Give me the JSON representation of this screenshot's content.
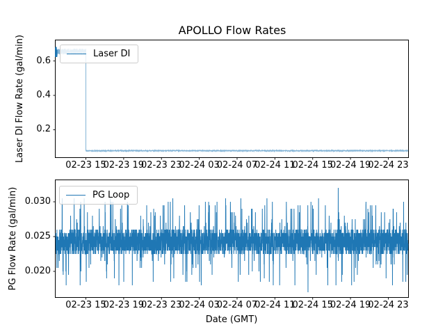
{
  "figure": {
    "background_color": "#ffffff",
    "line_color": "#1f77b4",
    "spine_color": "#000000",
    "legend_border_color": "#cccccc"
  },
  "chart_data": [
    {
      "type": "line",
      "title": "APOLLO Flow Rates",
      "ylabel": "Laser DI Flow Rate (gal/min)",
      "legend": [
        "Laser DI"
      ],
      "legend_position": "upper-left",
      "grid": false,
      "x_unit": "hours after 02-23 12:00 GMT",
      "xlim": [
        0,
        37.3
      ],
      "xticks": [
        3.2,
        7.2,
        11.2,
        15.2,
        19.2,
        23.2,
        27.2,
        31.2,
        35.2
      ],
      "xticklabels": [
        "02-23 15",
        "02-23 19",
        "02-23 23",
        "02-24 03",
        "02-24 07",
        "02-24 11",
        "02-24 15",
        "02-24 19",
        "02-24 23"
      ],
      "ylim": [
        0.04,
        0.72
      ],
      "yticks": [
        0.2,
        0.4,
        0.6
      ],
      "yticklabels": [
        "0.2",
        "0.4",
        "0.6"
      ],
      "series": [
        {
          "name": "Laser DI",
          "color": "#1f77b4",
          "seed": 11,
          "description": "Flow holds near 0.655 gal/min with small noise until ~02-23 15:10, then drops sharply to ~0.078 gal/min and stays flat through 02-24 23:00.",
          "segments": [
            {
              "t_start": 0,
              "t_end": 3.2,
              "level": 0.655,
              "noise": 0.017
            },
            {
              "t_start": 3.2,
              "t_end": 37.3,
              "level": 0.078,
              "noise": 0.0025
            }
          ],
          "start_burst": {
            "t_end": 0.12,
            "level": 0.652,
            "noise": 0.03
          },
          "drop_time_h": 3.2
        }
      ]
    },
    {
      "type": "line",
      "title": "",
      "xlabel": "Date (GMT)",
      "ylabel": "PG Flow Rate (gal/min)",
      "legend": [
        "PG Loop"
      ],
      "legend_position": "upper-left",
      "grid": false,
      "x_unit": "hours after 02-23 12:00 GMT",
      "xlim": [
        0,
        37.3
      ],
      "xticks": [
        3.2,
        7.2,
        11.2,
        15.2,
        19.2,
        23.2,
        27.2,
        31.2,
        35.2
      ],
      "xticklabels": [
        "02-23 15",
        "02-23 19",
        "02-23 23",
        "02-24 03",
        "02-24 07",
        "02-24 11",
        "02-24 15",
        "02-24 19",
        "02-24 23"
      ],
      "ylim": [
        0.0163,
        0.0331
      ],
      "yticks": [
        0.02,
        0.025,
        0.03
      ],
      "yticklabels": [
        "0.020",
        "0.025",
        "0.030"
      ],
      "series": [
        {
          "name": "PG Loop",
          "color": "#1f77b4",
          "seed": 99,
          "description": "High-frequency noisy flow: dense band ~0.0225-0.026 gal/min, frequent spikes to ~0.029-0.031, dips to ~0.018-0.019; max ~0.032 near 02-24 18:00, min ~0.017 near 02-24 14:40.",
          "points_per_hour": 96,
          "band": {
            "min": 0.0225,
            "max": 0.026,
            "prob": 0.92
          },
          "upper_spikes": {
            "min": 0.026,
            "max": 0.0305,
            "prob": 0.045
          },
          "lower_dips": {
            "min": 0.018,
            "max": 0.0225
          },
          "quantization": 0.0005,
          "extremes": [
            {
              "t": 29.9,
              "value": 0.032
            },
            {
              "t": 26.7,
              "value": 0.017
            }
          ]
        }
      ]
    }
  ]
}
